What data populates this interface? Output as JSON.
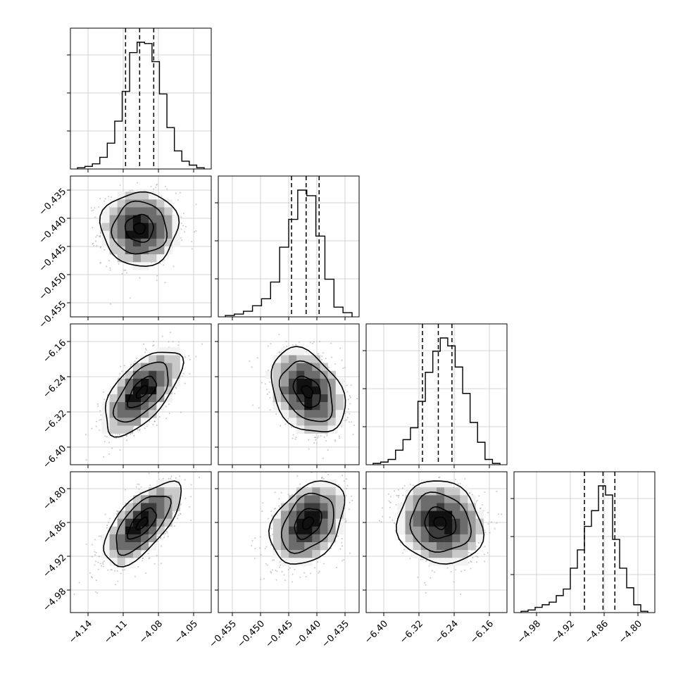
{
  "chart_data": {
    "type": "corner",
    "n_params": 4,
    "grid": true,
    "params": [
      {
        "range": [
          -4.155,
          -4.035
        ],
        "ticks": [
          -4.14,
          -4.11,
          -4.08,
          -4.05
        ],
        "tick_labels": [
          "−4.14",
          "−4.11",
          "−4.08",
          "−4.05"
        ],
        "quantiles": [
          -4.108,
          -4.096,
          -4.084
        ],
        "hist": [
          1,
          2,
          4,
          9,
          20,
          37,
          60,
          90,
          98,
          97,
          83,
          58,
          32,
          14,
          6,
          3,
          1
        ],
        "hist_hint": "normal"
      },
      {
        "range": [
          -0.4575,
          -0.4325
        ],
        "ticks": [
          -0.455,
          -0.45,
          -0.445,
          -0.44,
          -0.435
        ],
        "tick_labels": [
          "−0.455",
          "−0.450",
          "−0.445",
          "−0.440",
          "−0.435"
        ],
        "quantiles": [
          -0.4445,
          -0.4419,
          -0.4396
        ],
        "hist": [
          1,
          2,
          4,
          8,
          13,
          25,
          50,
          70,
          91,
          87,
          58,
          27,
          7,
          3
        ],
        "hist_hint": "normal"
      },
      {
        "range": [
          -6.44,
          -6.12
        ],
        "ticks": [
          -6.4,
          -6.32,
          -6.24,
          -6.16
        ],
        "tick_labels": [
          "−6.40",
          "−6.32",
          "−6.24",
          "−6.16"
        ],
        "quantiles": [
          -6.312,
          -6.276,
          -6.245
        ],
        "hist": [
          1,
          2,
          4,
          11,
          19,
          28,
          48,
          70,
          86,
          96,
          90,
          74,
          54,
          32,
          17,
          4,
          1
        ],
        "hist_hint": "normal"
      },
      {
        "range": [
          -5.02,
          -4.77
        ],
        "ticks": [
          -4.98,
          -4.92,
          -4.86,
          -4.8
        ],
        "tick_labels": [
          "−4.98",
          "−4.92",
          "−4.86",
          "−4.80"
        ],
        "quantiles": [
          -4.895,
          -4.862,
          -4.841
        ],
        "hist": [
          1,
          2,
          4,
          6,
          8,
          13,
          18,
          34,
          48,
          66,
          78,
          97,
          90,
          56,
          34,
          19,
          6,
          1
        ],
        "hist_hint": "skew-left"
      }
    ],
    "panels_2d": [
      {
        "row": 1,
        "col": 0,
        "center": [
          -4.096,
          -0.4418
        ],
        "spread": [
          0.016,
          0.0032
        ],
        "rho": 0.0
      },
      {
        "row": 2,
        "col": 0,
        "center": [
          -4.094,
          -6.275
        ],
        "spread": [
          0.016,
          0.047
        ],
        "rho": 0.62
      },
      {
        "row": 2,
        "col": 1,
        "center": [
          -0.4417,
          -6.274
        ],
        "spread": [
          0.0032,
          0.047
        ],
        "rho": -0.32
      },
      {
        "row": 3,
        "col": 0,
        "center": [
          -4.094,
          -4.862
        ],
        "spread": [
          0.016,
          0.036
        ],
        "rho": 0.66
      },
      {
        "row": 3,
        "col": 1,
        "center": [
          -0.4416,
          -4.861
        ],
        "spread": [
          0.0032,
          0.036
        ],
        "rho": 0.36
      },
      {
        "row": 3,
        "col": 2,
        "center": [
          -6.272,
          -4.861
        ],
        "spread": [
          0.047,
          0.036
        ],
        "rho": -0.1
      }
    ],
    "colors": {
      "line": "#000000",
      "scatter": "#9a9a9a",
      "grid": "#c8c8c8",
      "density": [
        "#f2f2f2",
        "#c9c9c9",
        "#9c9c9c",
        "#6c6c6c",
        "#3c3c3c",
        "#111111"
      ]
    }
  }
}
